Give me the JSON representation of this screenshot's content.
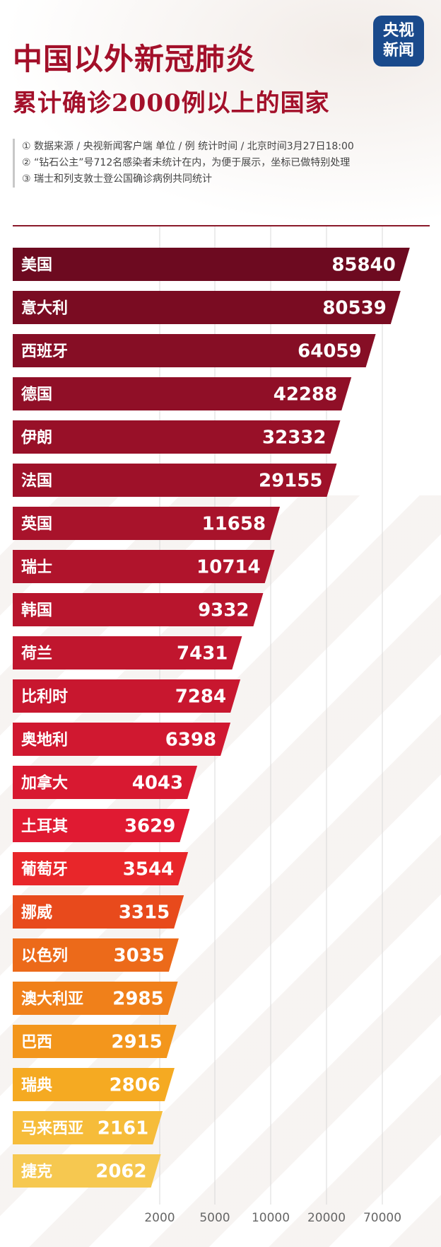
{
  "header": {
    "title_line1": "中国以外新冠肺炎",
    "title_line2": "累计确诊2000例以上的国家",
    "logo_line1": "央视",
    "logo_line2": "新闻"
  },
  "notes": [
    "① 数据来源 / 央视新闻客户端  单位 / 例   统计时间 / 北京时间3月27日18:00",
    "② “钻石公主”号712名感染者未统计在内，为便于展示，坐标已做特别处理",
    "③ 瑞士和列支敦士登公国确诊病例共同统计"
  ],
  "chart_data": {
    "type": "bar",
    "orientation": "horizontal",
    "scale": "custom-compressed",
    "categories": [
      "美国",
      "意大利",
      "西班牙",
      "德国",
      "伊朗",
      "法国",
      "英国",
      "瑞士",
      "韩国",
      "荷兰",
      "比利时",
      "奥地利",
      "加拿大",
      "土耳其",
      "葡萄牙",
      "挪威",
      "以色列",
      "澳大利亚",
      "巴西",
      "瑞典",
      "马来西亚",
      "捷克"
    ],
    "values": [
      85840,
      80539,
      64059,
      42288,
      32332,
      29155,
      11658,
      10714,
      9332,
      7431,
      7284,
      6398,
      4043,
      3629,
      3544,
      3315,
      3035,
      2985,
      2915,
      2806,
      2161,
      2062
    ],
    "x_ticks": [
      "2000",
      "5000",
      "10000",
      "20000",
      "70000"
    ],
    "x_tick_values": [
      2000,
      5000,
      10000,
      20000,
      70000
    ],
    "grid": true,
    "colors": [
      "#6d0a20",
      "#7a0c22",
      "#860e25",
      "#900f27",
      "#981028",
      "#9e1129",
      "#a8132b",
      "#b0142c",
      "#b8152d",
      "#c0162e",
      "#c8172f",
      "#d01830",
      "#d81931",
      "#e01a32",
      "#e8262a",
      "#e84a1c",
      "#ec6a1a",
      "#f0801a",
      "#f3961c",
      "#f5aa22",
      "#f6bc3a",
      "#f6c850"
    ]
  }
}
